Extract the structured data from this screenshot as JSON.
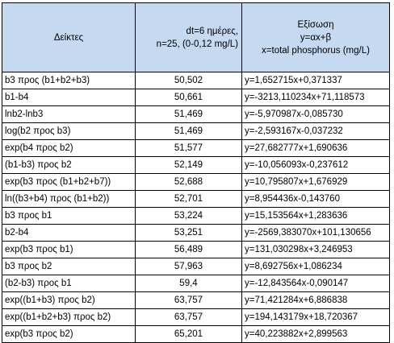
{
  "header": {
    "col1": "Δείκτες",
    "col2_line1": "dt=6 ημέρες,",
    "col2_line2": "n=25, (0-0,12 mg/L)",
    "col3_line1": "Εξίσωση",
    "col3_line2": "y=αx+β",
    "col3_line3": "x=total phosphorus (mg/L)"
  },
  "rows": [
    {
      "index": "b3 προς (b1+b2+b3)",
      "value": "50,502",
      "equation": "y=1,652715x+0,371337"
    },
    {
      "index": "b1-b4",
      "value": "50,661",
      "equation": "y=-3213,110234x+71,118573"
    },
    {
      "index": "lnb2-lnb3",
      "value": "51,469",
      "equation": "y=-5,970987x-0,085730"
    },
    {
      "index": "log(b2 προς b3)",
      "value": "51,469",
      "equation": "y=-2,593167x-0,037232"
    },
    {
      "index": "exp(b4 προς b2)",
      "value": "51,577",
      "equation": "y=27,682777x+1,690636"
    },
    {
      "index": "(b1-b3) προς b2",
      "value": "52,149",
      "equation": "y=-10,056093x-0,237612"
    },
    {
      "index": "exp(b3 προς (b1+b2+b7))",
      "value": "52,688",
      "equation": "y=10,795807x+1,676929"
    },
    {
      "index": "ln((b3+b4) προς (b1+b2))",
      "value": "52,701",
      "equation": "y=8,954436x-0,143760"
    },
    {
      "index": "b3 προς b1",
      "value": "53,224",
      "equation": "y=15,153564x+1,283636"
    },
    {
      "index": "b2-b4",
      "value": "53,251",
      "equation": "y=-2569,383070x+101,130656"
    },
    {
      "index": "exp(b3 προς b1)",
      "value": "56,489",
      "equation": "y=131,030298x+3,246953"
    },
    {
      "index": "b3 προς b2",
      "value": "57,963",
      "equation": "y=8,692756x+1,086234"
    },
    {
      "index": "(b2-b3) προς b1",
      "value": "59,4",
      "equation": "y=-12,843564x-0,090147"
    },
    {
      "index": "exp((b1+b3) προς b2)",
      "value": "63,757",
      "equation": "y=71,421284x+6,886838"
    },
    {
      "index": "exp((b1+b2+b3) προς b2)",
      "value": "63,757",
      "equation": "y=194,143179x+18,720367"
    },
    {
      "index": "exp(b3 προς b2)",
      "value": "65,201",
      "equation": "y=40,223882x+2,899563"
    }
  ]
}
